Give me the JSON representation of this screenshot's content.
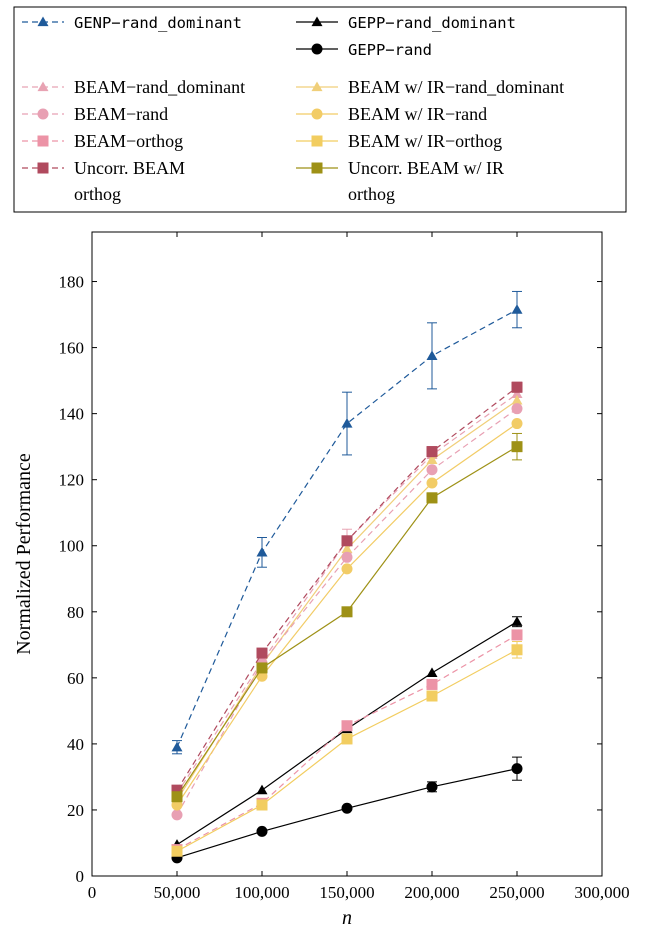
{
  "chart_data": {
    "type": "line",
    "xlabel": "n",
    "ylabel": "Normalized Performance",
    "xlim": [
      0,
      300000
    ],
    "ylim": [
      0,
      195
    ],
    "xticks": [
      0,
      50000,
      100000,
      150000,
      200000,
      250000,
      300000
    ],
    "xtick_labels": [
      "0",
      "50,000",
      "100,000",
      "150,000",
      "200,000",
      "250,000",
      "300,000"
    ],
    "yticks": [
      0,
      20,
      40,
      60,
      80,
      100,
      120,
      140,
      160,
      180
    ],
    "ytick_labels": [
      "0",
      "20",
      "40",
      "60",
      "80",
      "100",
      "120",
      "140",
      "160",
      "180"
    ],
    "grid": false,
    "legend_position": "top",
    "x": [
      50000,
      100000,
      150000,
      200000,
      250000
    ],
    "series": [
      {
        "name": "GENP−rand_dominant",
        "color": "#1f5a9a",
        "dash": true,
        "marker": "triangle",
        "values": [
          39,
          98,
          137,
          157.5,
          171.5
        ],
        "err": [
          2,
          4.5,
          9.5,
          10,
          5.5
        ]
      },
      {
        "name": "GEPP−rand_dominant",
        "color": "#000000",
        "dash": false,
        "marker": "triangle",
        "values": [
          9.5,
          26,
          44.5,
          61.5,
          77
        ],
        "err": [
          0,
          0,
          0,
          0,
          1.5
        ]
      },
      {
        "name": "GEPP−rand",
        "color": "#000000",
        "dash": false,
        "marker": "circle",
        "values": [
          5.5,
          13.5,
          20.5,
          27,
          32.5
        ],
        "err": [
          0,
          0,
          0,
          1.5,
          3.5
        ]
      },
      {
        "name": "BEAM−rand_dominant",
        "color": "#e8a3b3",
        "dash": true,
        "marker": "triangle",
        "values": [
          25,
          65,
          101.5,
          127.5,
          146
        ],
        "err": [
          0,
          0,
          3.5,
          0,
          0
        ]
      },
      {
        "name": "BEAM w/ IR−rand_dominant",
        "color": "#f0cf7a",
        "dash": false,
        "marker": "triangle",
        "values": [
          23,
          64,
          99,
          126,
          144
        ],
        "err": [
          0,
          0,
          0,
          0,
          0
        ]
      },
      {
        "name": "BEAM−rand",
        "color": "#e8a0b3",
        "dash": true,
        "marker": "circle",
        "values": [
          18.5,
          64.5,
          96.5,
          123,
          141.5
        ],
        "err": [
          0,
          0,
          0,
          0,
          0
        ]
      },
      {
        "name": "BEAM w/ IR−rand",
        "color": "#f2cc66",
        "dash": false,
        "marker": "circle",
        "values": [
          21.5,
          60.5,
          93,
          119,
          137
        ],
        "err": [
          0,
          0,
          0,
          0,
          0
        ]
      },
      {
        "name": "BEAM−orthog",
        "color": "#ec93a6",
        "dash": true,
        "marker": "square",
        "values": [
          8,
          22,
          45.5,
          58,
          73
        ],
        "err": [
          0,
          0,
          0,
          0,
          0
        ]
      },
      {
        "name": "BEAM w/ IR−orthog",
        "color": "#f2cd60",
        "dash": false,
        "marker": "square",
        "values": [
          7.5,
          21.5,
          41.5,
          54.5,
          68.5
        ],
        "err": [
          0,
          0,
          0,
          0,
          2.5
        ]
      },
      {
        "name": "Uncorr. BEAM orthog",
        "color": "#b04a5e",
        "dash": true,
        "marker": "square",
        "values": [
          26,
          67.5,
          101.5,
          128.5,
          148
        ],
        "err": [
          0,
          0,
          0,
          1.5,
          1.5
        ]
      },
      {
        "name": "Uncorr. BEAM w/ IR orthog",
        "color": "#9e9116",
        "dash": false,
        "marker": "square",
        "values": [
          24,
          63,
          80,
          114.5,
          130
        ],
        "err": [
          0,
          0,
          0,
          1.5,
          4
        ]
      }
    ],
    "legend": [
      {
        "col": 0,
        "row": 0,
        "series": 0,
        "label": "GENP−rand_dominant",
        "style": "mono"
      },
      {
        "col": 1,
        "row": 0,
        "series": 1,
        "label": "GEPP−rand_dominant",
        "style": "mono"
      },
      {
        "col": 1,
        "row": 1,
        "series": 2,
        "label": "GEPP−rand",
        "style": "mono"
      },
      {
        "col": 0,
        "row": 2,
        "series": 3,
        "label": "BEAM−rand_dominant",
        "style": "serif"
      },
      {
        "col": 1,
        "row": 2,
        "series": 4,
        "label": "BEAM w/ IR−rand_dominant",
        "style": "serif"
      },
      {
        "col": 0,
        "row": 3,
        "series": 5,
        "label": "BEAM−rand",
        "style": "serif"
      },
      {
        "col": 1,
        "row": 3,
        "series": 6,
        "label": "BEAM w/ IR−rand",
        "style": "serif"
      },
      {
        "col": 0,
        "row": 4,
        "series": 7,
        "label": "BEAM−orthog",
        "style": "serif"
      },
      {
        "col": 1,
        "row": 4,
        "series": 8,
        "label": "BEAM w/ IR−orthog",
        "style": "serif"
      },
      {
        "col": 0,
        "row": 5,
        "series": 9,
        "label": "Uncorr. BEAM",
        "label2": "orthog",
        "style": "serif"
      },
      {
        "col": 1,
        "row": 5,
        "series": 10,
        "label": "Uncorr. BEAM w/ IR",
        "label2": "orthog",
        "style": "serif"
      }
    ]
  }
}
